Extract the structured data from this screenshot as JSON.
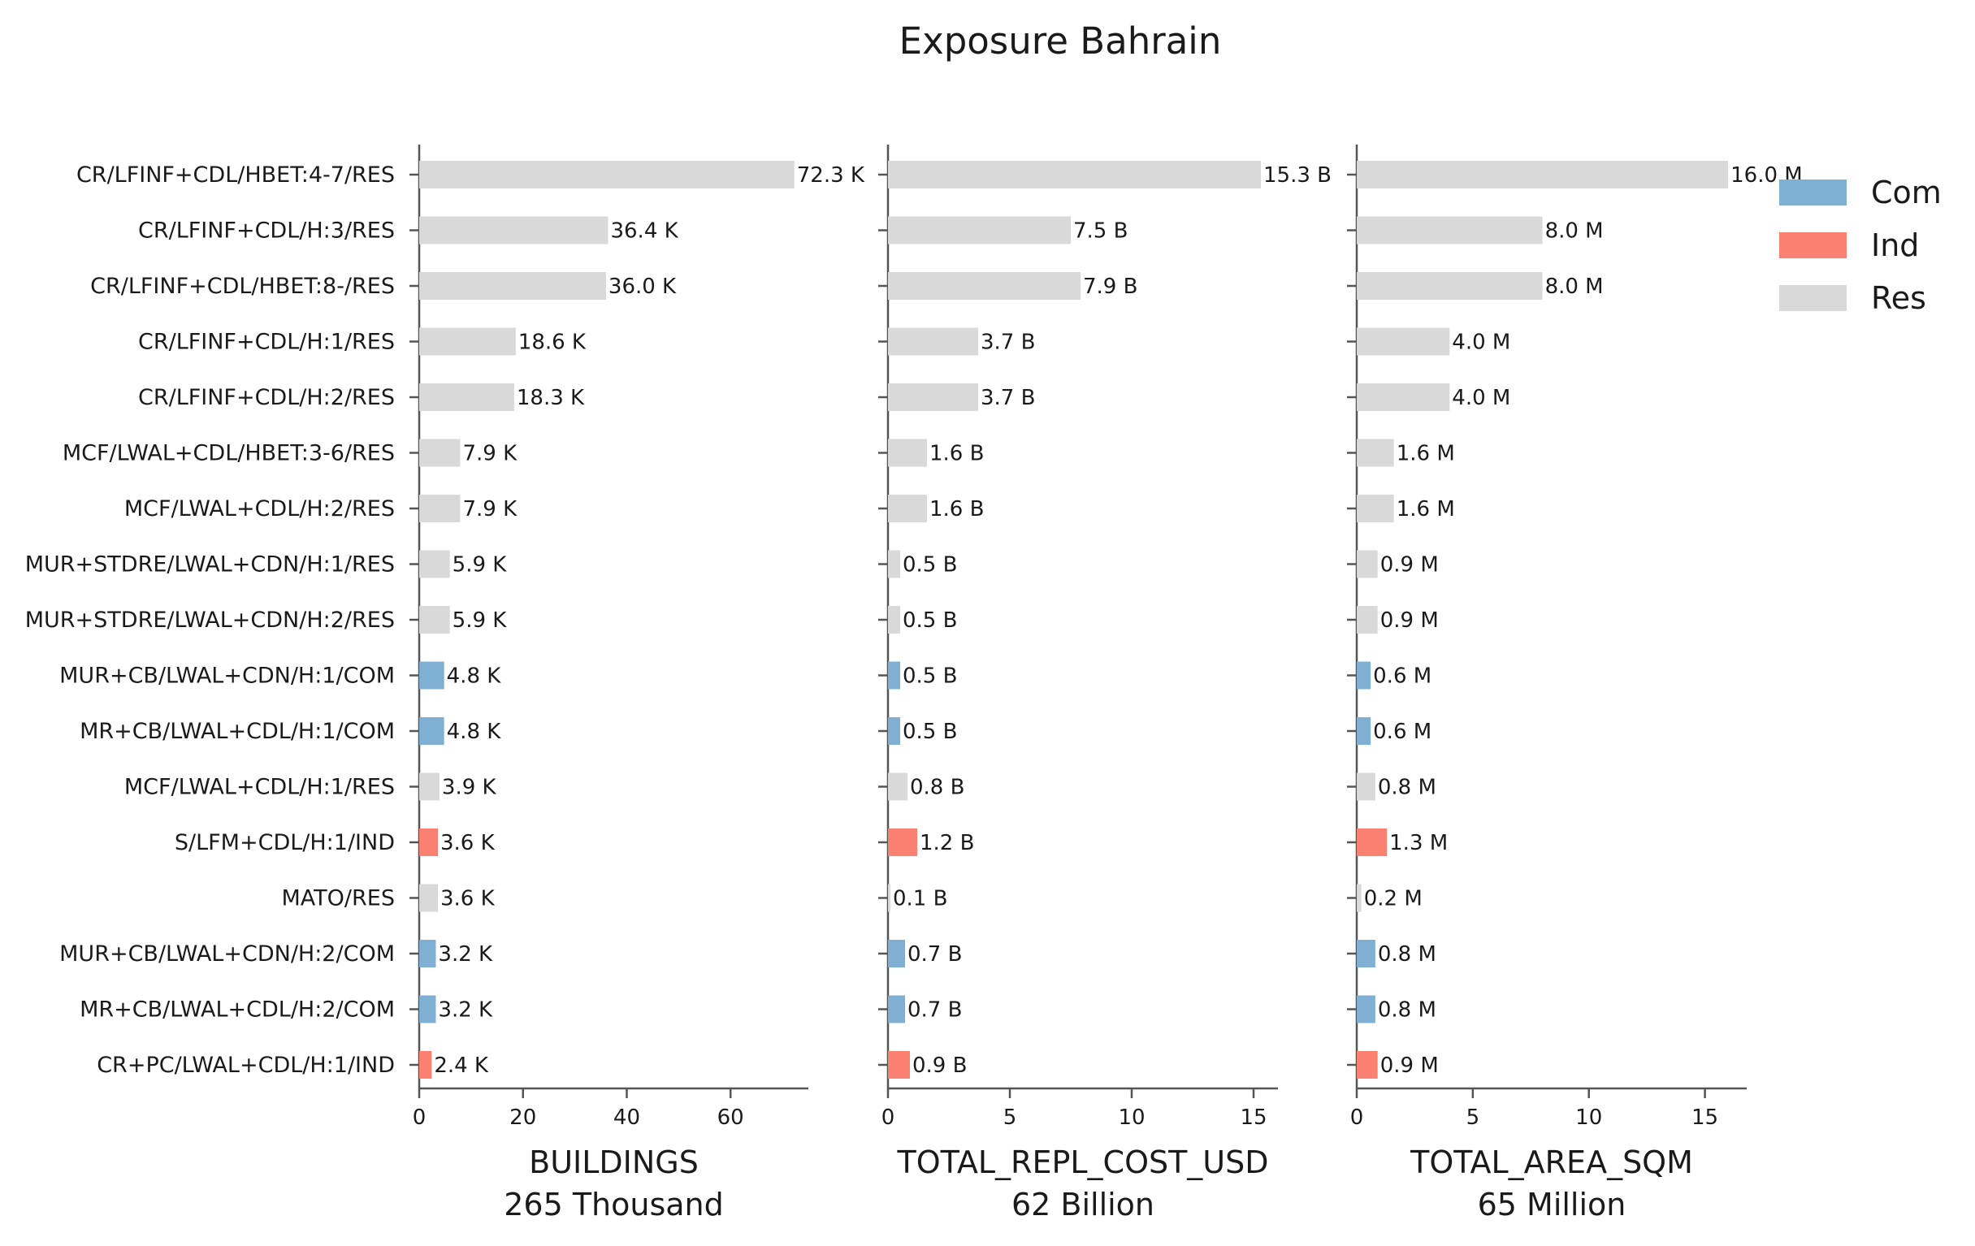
{
  "chart_data": {
    "title": "Exposure Bahrain",
    "type": "bar",
    "orientation": "horizontal",
    "grid": false,
    "legend": {
      "placement": "top-right",
      "entries": [
        {
          "name": "Com",
          "color": "#7fb0d4"
        },
        {
          "name": "Ind",
          "color": "#fa8072"
        },
        {
          "name": "Res",
          "color": "#d9d9d9"
        }
      ]
    },
    "categories": [
      "CR/LFINF+CDL/HBET:4-7/RES",
      "CR/LFINF+CDL/H:3/RES",
      "CR/LFINF+CDL/HBET:8-/RES",
      "CR/LFINF+CDL/H:1/RES",
      "CR/LFINF+CDL/H:2/RES",
      "MCF/LWAL+CDL/HBET:3-6/RES",
      "MCF/LWAL+CDL/H:2/RES",
      "MUR+STDRE/LWAL+CDN/H:1/RES",
      "MUR+STDRE/LWAL+CDN/H:2/RES",
      "MUR+CB/LWAL+CDN/H:1/COM",
      "MR+CB/LWAL+CDL/H:1/COM",
      "MCF/LWAL+CDL/H:1/RES",
      "S/LFM+CDL/H:1/IND",
      "MATO/RES",
      "MUR+CB/LWAL+CDN/H:2/COM",
      "MR+CB/LWAL+CDL/H:2/COM",
      "CR+PC/LWAL+CDL/H:1/IND"
    ],
    "occupancy": [
      "Res",
      "Res",
      "Res",
      "Res",
      "Res",
      "Res",
      "Res",
      "Res",
      "Res",
      "Com",
      "Com",
      "Res",
      "Ind",
      "Res",
      "Com",
      "Com",
      "Ind"
    ],
    "panels": [
      {
        "xlabel": "BUILDINGS",
        "total": "265 Thousand",
        "xlim": [
          0,
          75
        ],
        "xticks": [
          0,
          20,
          40,
          60
        ],
        "xtick_labels": [
          "0",
          "20",
          "40",
          "60"
        ],
        "values": [
          72.3,
          36.4,
          36.0,
          18.6,
          18.3,
          7.9,
          7.9,
          5.9,
          5.9,
          4.8,
          4.8,
          3.9,
          3.6,
          3.6,
          3.2,
          3.2,
          2.4
        ],
        "labels": [
          "72.3 K",
          "36.4 K",
          "36.0 K",
          "18.6 K",
          "18.3 K",
          "7.9 K",
          "7.9 K",
          "5.9 K",
          "5.9 K",
          "4.8 K",
          "4.8 K",
          "3.9 K",
          "3.6 K",
          "3.6 K",
          "3.2 K",
          "3.2 K",
          "2.4 K"
        ]
      },
      {
        "xlabel": "TOTAL_REPL_COST_USD",
        "total": "62 Billion",
        "xlim": [
          0,
          16
        ],
        "xticks": [
          0,
          5,
          10,
          15
        ],
        "xtick_labels": [
          "0",
          "5",
          "10",
          "15"
        ],
        "values": [
          15.3,
          7.5,
          7.9,
          3.7,
          3.7,
          1.6,
          1.6,
          0.5,
          0.5,
          0.5,
          0.5,
          0.8,
          1.2,
          0.1,
          0.7,
          0.7,
          0.9
        ],
        "labels": [
          "15.3 B",
          "7.5 B",
          "7.9 B",
          "3.7 B",
          "3.7 B",
          "1.6 B",
          "1.6 B",
          "0.5 B",
          "0.5 B",
          "0.5 B",
          "0.5 B",
          "0.8 B",
          "1.2 B",
          "0.1 B",
          "0.7 B",
          "0.7 B",
          "0.9 B"
        ]
      },
      {
        "xlabel": "TOTAL_AREA_SQM",
        "total": "65 Million",
        "xlim": [
          0,
          16.8
        ],
        "xticks": [
          0,
          5,
          10,
          15
        ],
        "xtick_labels": [
          "0",
          "5",
          "10",
          "15"
        ],
        "values": [
          16.0,
          8.0,
          8.0,
          4.0,
          4.0,
          1.6,
          1.6,
          0.9,
          0.9,
          0.6,
          0.6,
          0.8,
          1.3,
          0.2,
          0.8,
          0.8,
          0.9
        ],
        "labels": [
          "16.0 M",
          "8.0 M",
          "8.0 M",
          "4.0 M",
          "4.0 M",
          "1.6 M",
          "1.6 M",
          "0.9 M",
          "0.9 M",
          "0.6 M",
          "0.6 M",
          "0.8 M",
          "1.3 M",
          "0.2 M",
          "0.8 M",
          "0.8 M",
          "0.9 M"
        ]
      }
    ]
  }
}
